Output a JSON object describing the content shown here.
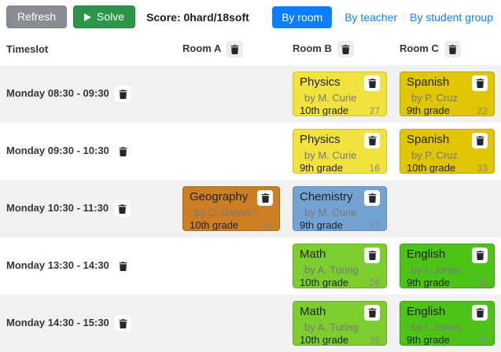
{
  "toolbar": {
    "refresh_label": "Refresh",
    "solve_label": "Solve",
    "score_label": "Score: 0hard/18soft",
    "views": [
      {
        "label": "By room",
        "active": true
      },
      {
        "label": "By teacher",
        "active": false
      },
      {
        "label": "By student group",
        "active": false
      }
    ]
  },
  "icons": {
    "trash": "trash-icon",
    "play": "play-icon"
  },
  "table": {
    "timeslot_header": "Timeslot",
    "room_headers": [
      "Room A",
      "Room B",
      "Room C"
    ],
    "rows": [
      {
        "timeslot": "Monday 08:30 - 09:30",
        "lessons": {
          "roomB": {
            "subject": "Physics",
            "teacher": "by M. Curie",
            "grade": "10th grade",
            "id": "27",
            "color": "physics"
          },
          "roomC": {
            "subject": "Spanish",
            "teacher": "by P. Cruz",
            "grade": "9th grade",
            "id": "22",
            "color": "spanish"
          }
        }
      },
      {
        "timeslot": "Monday 09:30 - 10:30",
        "lessons": {
          "roomB": {
            "subject": "Physics",
            "teacher": "by M. Curie",
            "grade": "9th grade",
            "id": "16",
            "color": "physics"
          },
          "roomC": {
            "subject": "Spanish",
            "teacher": "by P. Cruz",
            "grade": "10th grade",
            "id": "33",
            "color": "spanish"
          }
        }
      },
      {
        "timeslot": "Monday 10:30 - 11:30",
        "lessons": {
          "roomA": {
            "subject": "Geography",
            "teacher": "by C. Darwin",
            "grade": "10th grade",
            "id": "30",
            "color": "geography"
          },
          "roomB": {
            "subject": "Chemistry",
            "teacher": "by M. Curie",
            "grade": "9th grade",
            "id": "17",
            "color": "chemistry"
          }
        }
      },
      {
        "timeslot": "Monday 13:30 - 14:30",
        "lessons": {
          "roomB": {
            "subject": "Math",
            "teacher": "by A. Turing",
            "grade": "10th grade",
            "id": "26",
            "color": "math"
          },
          "roomC": {
            "subject": "English",
            "teacher": "by I. Jones",
            "grade": "9th grade",
            "id": "20",
            "color": "english"
          }
        }
      },
      {
        "timeslot": "Monday 14:30 - 15:30",
        "lessons": {
          "roomB": {
            "subject": "Math",
            "teacher": "by A. Turing",
            "grade": "10th grade",
            "id": "25",
            "color": "math"
          },
          "roomC": {
            "subject": "English",
            "teacher": "by I. Jones",
            "grade": "9th grade",
            "id": "21",
            "color": "english"
          }
        }
      }
    ]
  },
  "colors": {
    "physics": {
      "bg": "#f1e23d",
      "border": "#d2c32a"
    },
    "spanish": {
      "bg": "#e0c502",
      "border": "#bca500"
    },
    "geography": {
      "bg": "#ce7e22",
      "border": "#a8661b"
    },
    "chemistry": {
      "bg": "#74a2d2",
      "border": "#5d8abc"
    },
    "math": {
      "bg": "#7ccd2d",
      "border": "#67ac23"
    },
    "english": {
      "bg": "#4cc316",
      "border": "#3d9f0f"
    },
    "refresh_button": {
      "bg": "#878d93",
      "border": "#7d838a",
      "text": "#ffffff"
    },
    "solve_button": {
      "bg": "#2b9549",
      "border": "#24813f",
      "text": "#ffffff"
    },
    "view_active": {
      "bg": "#0d7efd",
      "text": "#ffffff"
    },
    "view_link": {
      "text": "#0d7efd"
    }
  }
}
